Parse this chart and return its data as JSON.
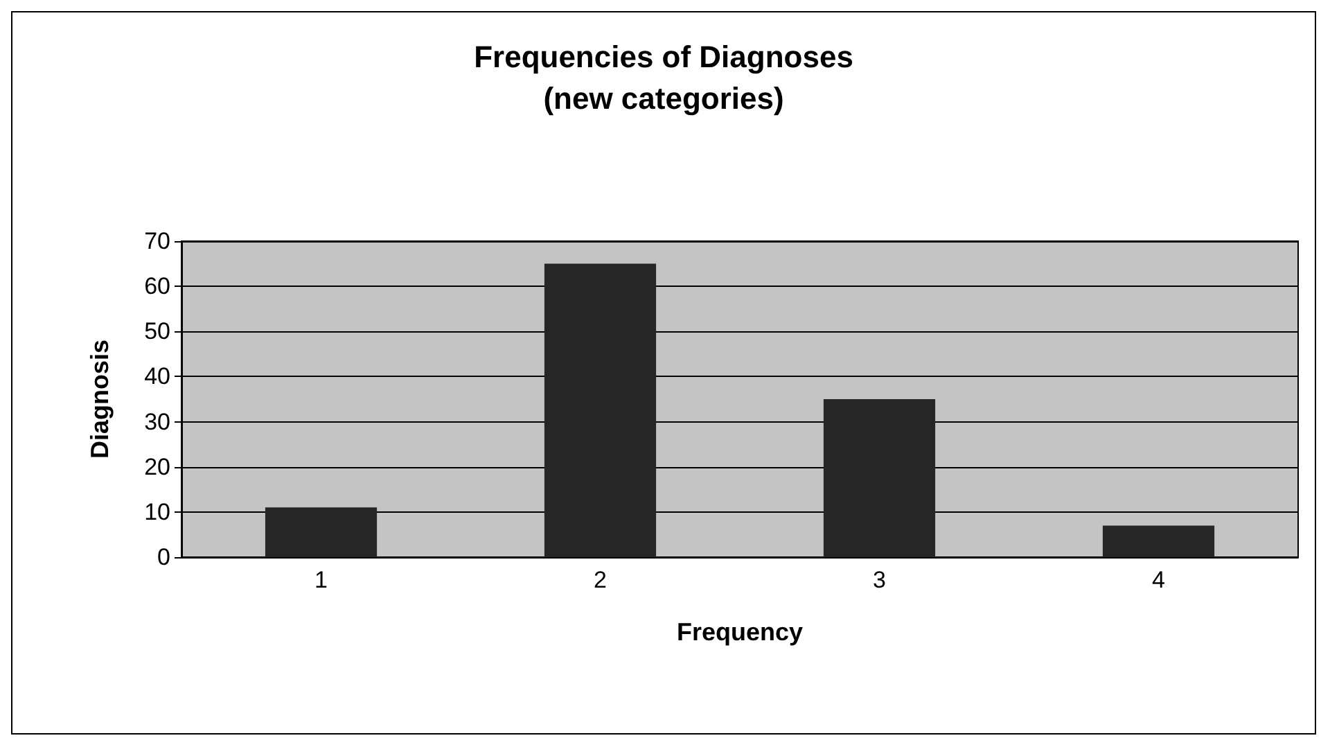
{
  "chart_data": {
    "type": "bar",
    "title": "Frequencies of Diagnoses\n(new categories)",
    "xlabel": "Frequency",
    "ylabel": "Diagnosis",
    "categories": [
      "1",
      "2",
      "3",
      "4"
    ],
    "values": [
      11,
      65,
      35,
      7
    ],
    "color": "#262626",
    "ylim": [
      0,
      70
    ],
    "yticks": [
      0,
      10,
      20,
      30,
      40,
      50,
      60,
      70
    ],
    "grid": "y"
  }
}
